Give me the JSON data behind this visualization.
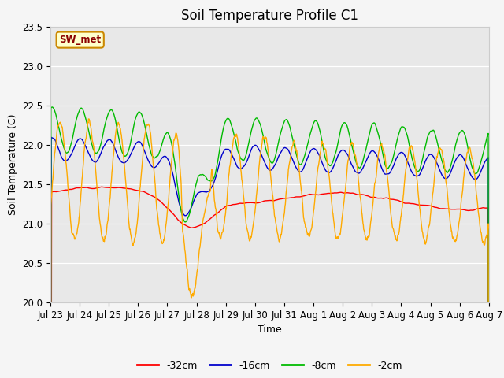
{
  "title": "Soil Temperature Profile C1",
  "xlabel": "Time",
  "ylabel": "Soil Temperature (C)",
  "ylim": [
    20.0,
    23.5
  ],
  "yticks": [
    20.0,
    20.5,
    21.0,
    21.5,
    22.0,
    22.5,
    23.0,
    23.5
  ],
  "legend_label": "SW_met",
  "series_labels": [
    "-32cm",
    "-16cm",
    "-8cm",
    "-2cm"
  ],
  "series_colors": [
    "#ff0000",
    "#0000cc",
    "#00bb00",
    "#ffaa00"
  ],
  "xtick_labels": [
    "Jul 23",
    "Jul 24",
    "Jul 25",
    "Jul 26",
    "Jul 27",
    "Jul 28",
    "Jul 29",
    "Jul 30",
    "Jul 31",
    "Aug 1",
    "Aug 2",
    "Aug 3",
    "Aug 4",
    "Aug 5",
    "Aug 6",
    "Aug 7"
  ],
  "n_points": 1440,
  "title_fontsize": 12,
  "axis_label_fontsize": 9,
  "tick_fontsize": 8.5,
  "line_width": 1.0,
  "fig_width": 6.4,
  "fig_height": 4.8,
  "dpi": 100
}
